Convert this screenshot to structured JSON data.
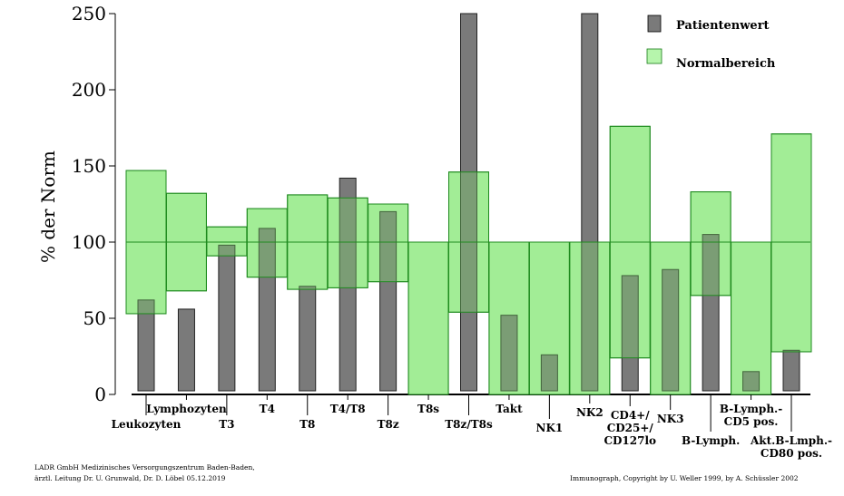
{
  "chart_data": {
    "type": "bar",
    "ylabel": "% der Norm",
    "ylim": [
      0,
      250
    ],
    "yticks": [
      "0",
      "50",
      "100",
      "150",
      "200",
      "250"
    ],
    "reference_line": 100,
    "categories": [
      [
        "Leukozyten"
      ],
      [
        "Lymphozyten"
      ],
      [
        "T3"
      ],
      [
        "T4"
      ],
      [
        "T8"
      ],
      [
        "T4/T8"
      ],
      [
        "T8z"
      ],
      [
        "T8s"
      ],
      [
        "T8z/T8s"
      ],
      [
        "Takt"
      ],
      [
        "NK1"
      ],
      [
        "NK2"
      ],
      [
        "CD4+/",
        "CD25+/",
        "CD127lo"
      ],
      [
        "NK3"
      ],
      [
        "B-Lymph."
      ],
      [
        "B-Lymph.-",
        "CD5 pos."
      ],
      [
        "Akt.B-Lmph.-",
        "CD80 pos."
      ]
    ],
    "series": [
      {
        "name": "Patientenwert",
        "color": "#7a7a7a",
        "values": [
          62,
          56,
          98,
          109,
          71,
          142,
          120,
          0,
          250,
          52,
          26,
          250,
          78,
          82,
          105,
          15,
          29
        ],
        "clipped": [
          false,
          false,
          false,
          false,
          false,
          false,
          false,
          false,
          true,
          false,
          false,
          true,
          false,
          false,
          false,
          false,
          false
        ]
      },
      {
        "name": "Normalbereich",
        "color": "#b6f5ac",
        "ranges": [
          [
            53,
            147
          ],
          [
            68,
            132
          ],
          [
            91,
            110
          ],
          [
            77,
            122
          ],
          [
            69,
            131
          ],
          [
            70,
            129
          ],
          [
            74,
            125
          ],
          [
            0,
            100
          ],
          [
            54,
            146
          ],
          [
            0,
            100
          ],
          [
            0,
            100
          ],
          [
            0,
            100
          ],
          [
            24,
            176
          ],
          [
            0,
            100
          ],
          [
            65,
            133
          ],
          [
            0,
            100
          ],
          [
            28,
            171
          ]
        ]
      }
    ],
    "legend": "top-right"
  },
  "footer": {
    "left_line1": "LADR GmbH Medizinisches Versorgungszentrum Baden-Baden,",
    "left_line2": "ärztl. Leitung Dr. U. Grunwald, Dr. D. Löbel  05.12.2019",
    "right": "Immunograph, Copyright by U. Weller 1999, by A. Schüssler 2002"
  }
}
